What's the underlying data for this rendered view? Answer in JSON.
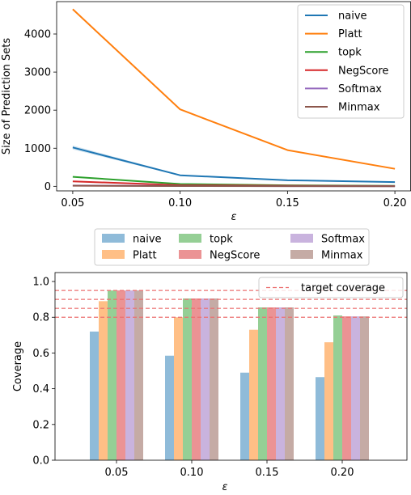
{
  "chart_data": [
    {
      "type": "line",
      "xlabel": "ε",
      "ylabel": "Size of Prediction Sets",
      "x": [
        0.05,
        0.1,
        0.15,
        0.2
      ],
      "xtick_labels": [
        "0.05",
        "0.10",
        "0.15",
        "0.20"
      ],
      "ylim": [
        -120,
        4850
      ],
      "yticks": [
        0,
        1000,
        2000,
        3000,
        4000
      ],
      "ytick_labels": [
        "0",
        "1000",
        "2000",
        "3000",
        "4000"
      ],
      "legend_position": "top-right",
      "series": [
        {
          "name": "naive",
          "color": "#1f77b4",
          "values": [
            1020,
            290,
            160,
            110
          ]
        },
        {
          "name": "Platt",
          "color": "#ff7f0e",
          "values": [
            4650,
            2020,
            950,
            460
          ]
        },
        {
          "name": "topk",
          "color": "#2ca02c",
          "values": [
            250,
            60,
            25,
            12
          ]
        },
        {
          "name": "NegScore",
          "color": "#d62728",
          "values": [
            130,
            30,
            15,
            8
          ]
        },
        {
          "name": "Softmax",
          "color": "#9467bd",
          "values": [
            20,
            10,
            5,
            3
          ]
        },
        {
          "name": "Minmax",
          "color": "#8c564b",
          "values": [
            15,
            8,
            4,
            2
          ]
        }
      ]
    },
    {
      "type": "bar",
      "xlabel": "ε",
      "ylabel": "Coverage",
      "categories": [
        "0.05",
        "0.10",
        "0.15",
        "0.20"
      ],
      "ylim": [
        0,
        1.05
      ],
      "yticks": [
        0.0,
        0.2,
        0.4,
        0.6,
        0.8,
        1.0
      ],
      "ytick_labels": [
        "0.0",
        "0.2",
        "0.4",
        "0.6",
        "0.8",
        "1.0"
      ],
      "legend_position": "top (outside), 3 columns",
      "series": [
        {
          "name": "naive",
          "color": "#8fbbd9",
          "values": [
            0.72,
            0.585,
            0.49,
            0.465
          ]
        },
        {
          "name": "Platt",
          "color": "#ffbf86",
          "values": [
            0.89,
            0.8,
            0.73,
            0.66
          ]
        },
        {
          "name": "topk",
          "color": "#95cf95",
          "values": [
            0.95,
            0.905,
            0.855,
            0.81
          ]
        },
        {
          "name": "NegScore",
          "color": "#eb9394",
          "values": [
            0.95,
            0.905,
            0.855,
            0.805
          ]
        },
        {
          "name": "Softmax",
          "color": "#c9b3de",
          "values": [
            0.95,
            0.905,
            0.855,
            0.805
          ]
        },
        {
          "name": "Minmax",
          "color": "#c5aba5",
          "values": [
            0.95,
            0.905,
            0.855,
            0.805
          ]
        }
      ],
      "reference_lines": {
        "name": "target coverage",
        "color": "#ec7070",
        "values": [
          0.95,
          0.9,
          0.85,
          0.8
        ]
      },
      "reference_legend_position": "top-right"
    }
  ]
}
